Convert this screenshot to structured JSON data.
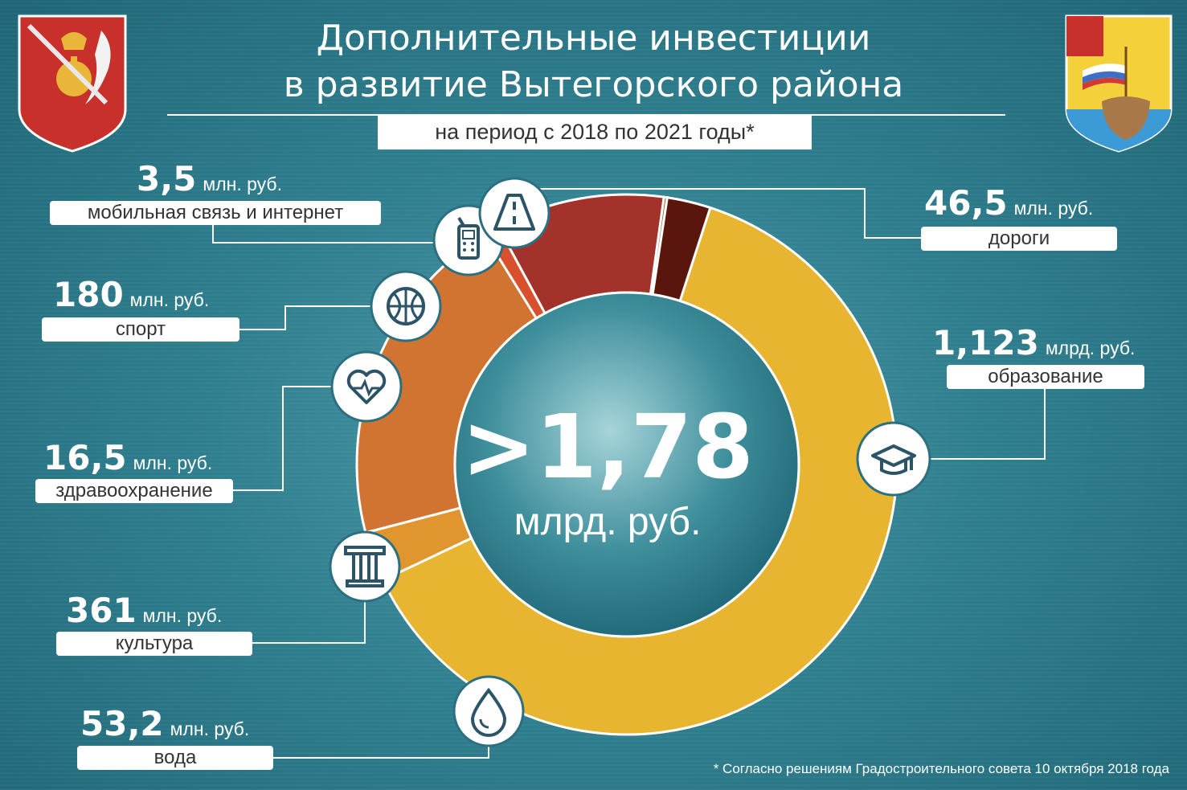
{
  "header": {
    "title_line1": "Дополнительные инвестиции",
    "title_line2": "в развитие Вытегорского района",
    "subtitle": "на период с 2018 по 2021 годы*"
  },
  "total": {
    "value": ">1,78",
    "unit": "млрд. руб."
  },
  "footnote": "* Согласно решениям Градостроительного совета 10 октября 2018 года",
  "colors": {
    "education": "#e8b531",
    "roads": "#5a160c",
    "mobile": "#a85a1e",
    "sport": "#a3322a",
    "health": "#d9512c",
    "culture": "#d27431",
    "water": "#e0952f",
    "icon_stroke": "#2c5468"
  },
  "chart_data": {
    "type": "pie",
    "title": "",
    "categories": [
      "образование",
      "вода",
      "культура",
      "здравоохранение",
      "спорт",
      "мобильная связь и интернет",
      "дороги"
    ],
    "values": [
      1123,
      53.2,
      361,
      16.5,
      180,
      3.5,
      46.5
    ],
    "units": "млн. руб.",
    "labels": [
      {
        "key": "education",
        "amount": "1,123",
        "unit": "млрд. руб.",
        "name": "образование",
        "icon": "graduation-cap-icon"
      },
      {
        "key": "water",
        "amount": "53,2",
        "unit": "млн. руб.",
        "name": "вода",
        "icon": "water-drop-icon"
      },
      {
        "key": "culture",
        "amount": "361",
        "unit": "млн. руб.",
        "name": "культура",
        "icon": "column-icon"
      },
      {
        "key": "health",
        "amount": "16,5",
        "unit": "млн. руб.",
        "name": "здравоохранение",
        "icon": "heartbeat-icon"
      },
      {
        "key": "sport",
        "amount": "180",
        "unit": "млн. руб.",
        "name": "спорт",
        "icon": "basketball-icon"
      },
      {
        "key": "mobile",
        "amount": "3,5",
        "unit": "млн. руб.",
        "name": "мобильная связь и интернет",
        "icon": "mobile-phone-icon"
      },
      {
        "key": "roads",
        "amount": "46,5",
        "unit": "млн. руб.",
        "name": "дороги",
        "icon": "road-icon"
      }
    ]
  }
}
